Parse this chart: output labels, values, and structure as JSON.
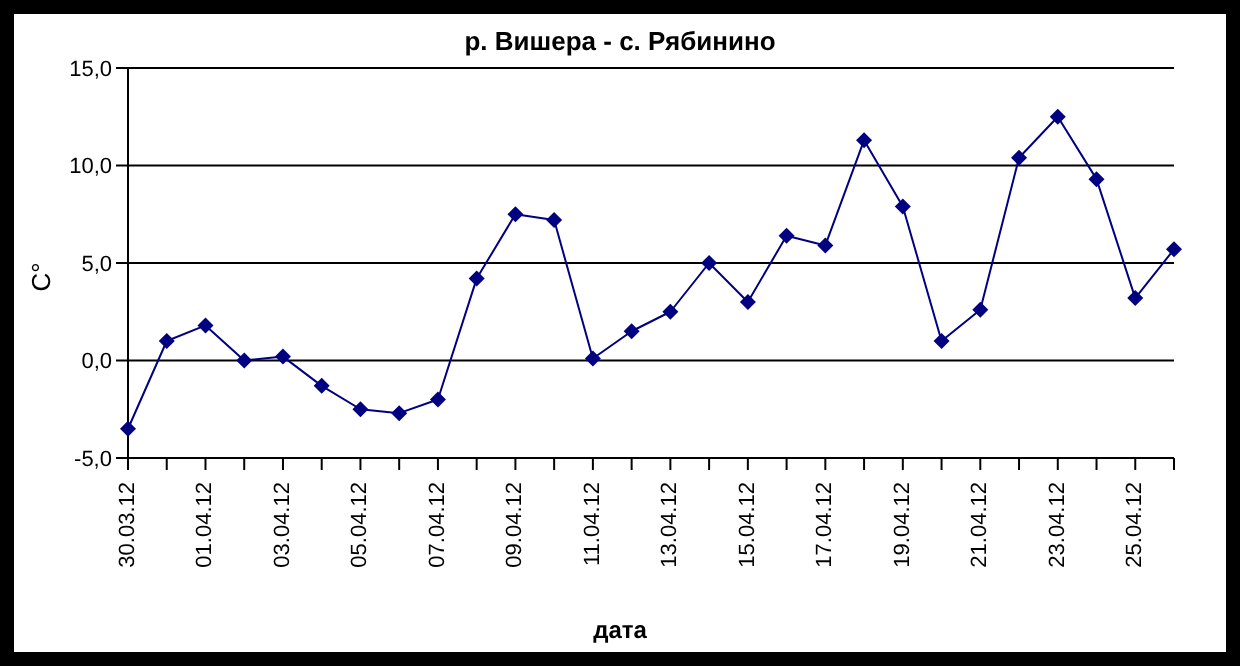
{
  "chart_data": {
    "type": "line",
    "title": "р. Вишера - с. Рябинино",
    "xlabel": "дата",
    "ylabel": "С°",
    "categories": [
      "30.03.12",
      null,
      "01.04.12",
      null,
      "03.04.12",
      null,
      "05.04.12",
      null,
      "07.04.12",
      null,
      "09.04.12",
      null,
      "11.04.12",
      null,
      "13.04.12",
      null,
      "15.04.12",
      null,
      "17.04.12",
      null,
      "19.04.12",
      null,
      "21.04.12",
      null,
      "23.04.12",
      null,
      "25.04.12",
      null
    ],
    "series": [
      {
        "color": "#000080",
        "values": [
          -3.5,
          1.0,
          1.8,
          0.0,
          0.2,
          -1.3,
          -2.5,
          -2.7,
          -2.0,
          4.2,
          7.5,
          7.2,
          0.1,
          1.5,
          2.5,
          5.0,
          3.0,
          6.4,
          5.9,
          11.3,
          7.9,
          1.0,
          2.6,
          10.4,
          12.5,
          9.3,
          3.2,
          5.7
        ]
      }
    ],
    "ylim": [
      -5,
      15
    ],
    "yticks": [
      {
        "value": -5,
        "label": "-5,0"
      },
      {
        "value": 0,
        "label": "0,0"
      },
      {
        "value": 5,
        "label": "5,0"
      },
      {
        "value": 10,
        "label": "10,0"
      },
      {
        "value": 15,
        "label": "15,0"
      }
    ],
    "grid": "y",
    "legend": false,
    "marker": "diamond",
    "line_style": "solid"
  }
}
